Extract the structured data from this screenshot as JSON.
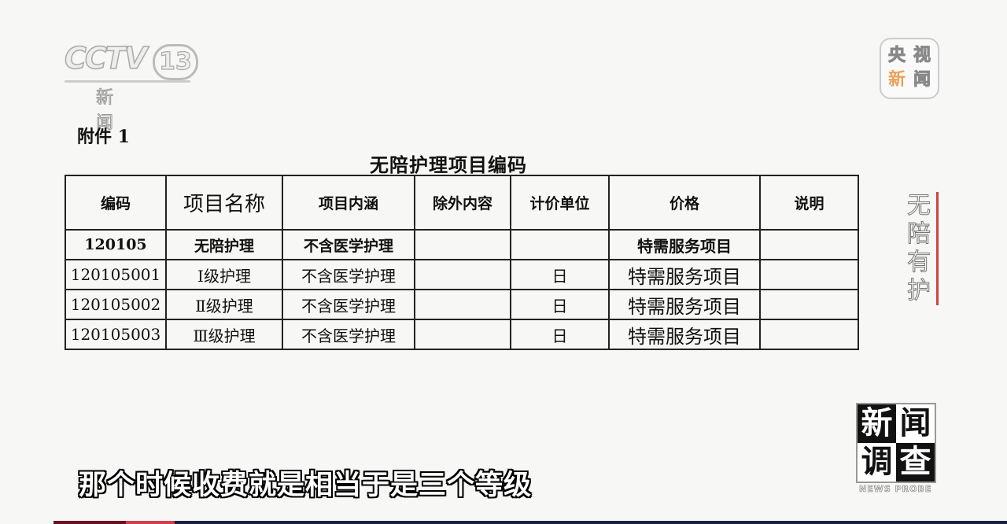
{
  "channel_logo": {
    "brand": "CCTV",
    "number": "13",
    "sub": "新 闻"
  },
  "app_logo": {
    "chars": [
      "央",
      "视",
      "新",
      "闻"
    ],
    "accent": "#e8a25a"
  },
  "document": {
    "attachment": "附件 1",
    "title": "无陪护理项目编码",
    "headers": [
      "编码",
      "项目名称",
      "项目内涵",
      "除外内容",
      "计价单位",
      "价格",
      "说明"
    ],
    "rows": [
      [
        "120105",
        "无陪护理",
        "不含医学护理",
        "",
        "",
        "特需服务项目",
        ""
      ],
      [
        "120105001",
        "Ⅰ级护理",
        "不含医学护理",
        "",
        "日",
        "特需服务项目",
        ""
      ],
      [
        "120105002",
        "Ⅱ级护理",
        "不含医学护理",
        "",
        "日",
        "特需服务项目",
        ""
      ],
      [
        "120105003",
        "Ⅲ级护理",
        "不含医学护理",
        "",
        "日",
        "特需服务项目",
        ""
      ]
    ]
  },
  "segment_label": "无陪有护",
  "program_logo": {
    "chars": [
      "新",
      "闻",
      "调",
      "查"
    ],
    "sub": "NEWS PROBE"
  },
  "subtitle": "那个时候收费就是相当于是三个等级"
}
